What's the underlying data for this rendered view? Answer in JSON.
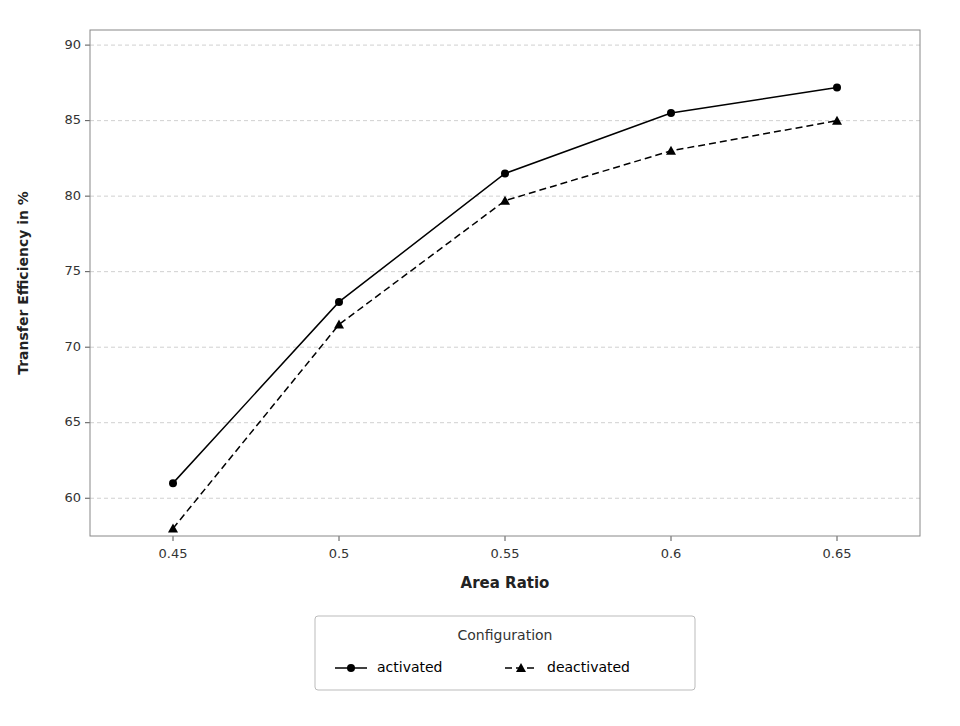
{
  "chart_data": {
    "type": "line",
    "x": [
      0.45,
      0.5,
      0.55,
      0.6,
      0.65
    ],
    "xlabel": "Area Ratio",
    "ylabel": "Transfer Efficiency in %",
    "xlim": [
      0.425,
      0.675
    ],
    "ylim": [
      57.5,
      91
    ],
    "xticks": [
      0.45,
      0.5,
      0.55,
      0.6,
      0.65
    ],
    "yticks": [
      60,
      65,
      70,
      75,
      80,
      85,
      90
    ],
    "grid": "y",
    "legend": "bottom",
    "legend_title": "Configuration",
    "series": [
      {
        "name": "activated",
        "color": "#000000",
        "marker": "circle",
        "line_style": "solid",
        "values": [
          61.0,
          73.0,
          81.5,
          85.5,
          87.2
        ]
      },
      {
        "name": "deactivated",
        "color": "#000000",
        "marker": "triangle",
        "line_style": "dashed",
        "values": [
          58.0,
          71.5,
          79.7,
          83.0,
          85.0
        ]
      }
    ]
  }
}
